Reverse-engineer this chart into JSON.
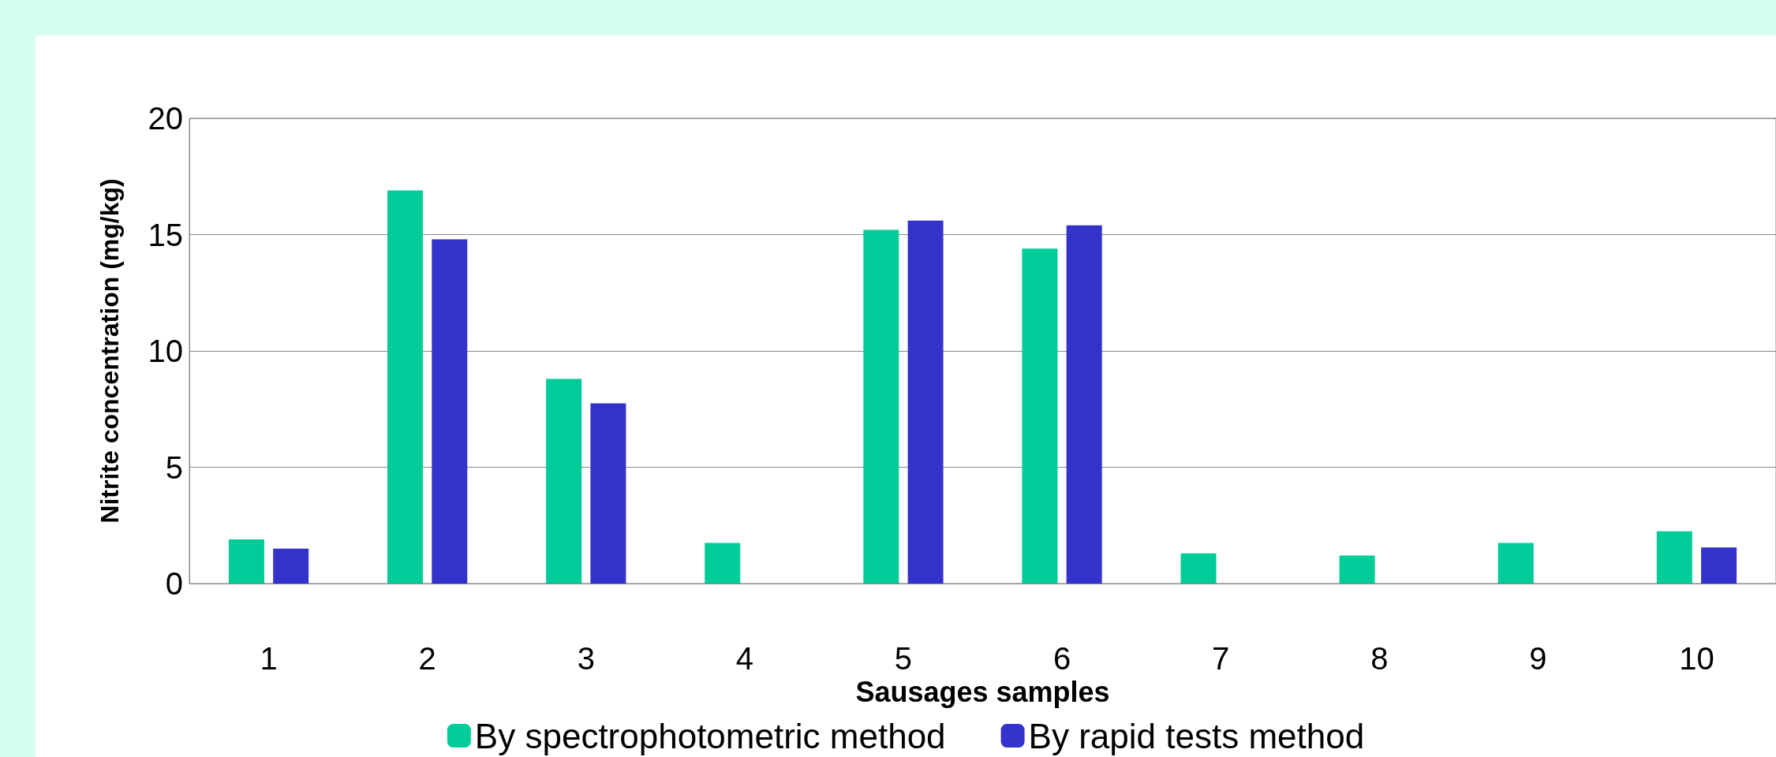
{
  "chart_data": {
    "type": "bar",
    "xlabel": "Sausages samples",
    "ylabel": "Nitrite concentration (mg/kg)",
    "categories": [
      "1",
      "2",
      "3",
      "4",
      "5",
      "6",
      "7",
      "8",
      "9",
      "10"
    ],
    "series": [
      {
        "name": "By spectrophotometric method",
        "color": "#00cc99",
        "values": [
          1.9,
          16.9,
          8.8,
          1.75,
          15.2,
          14.4,
          1.3,
          1.2,
          1.75,
          2.25
        ]
      },
      {
        "name": "By rapid tests method",
        "color": "#3333cc",
        "values": [
          1.5,
          14.8,
          7.75,
          0,
          15.6,
          15.4,
          0,
          0,
          0,
          1.55
        ]
      }
    ],
    "ylim": [
      0,
      20
    ],
    "yticks": [
      0,
      5,
      10,
      15,
      20
    ],
    "grid": "y",
    "legend": "bottom"
  }
}
